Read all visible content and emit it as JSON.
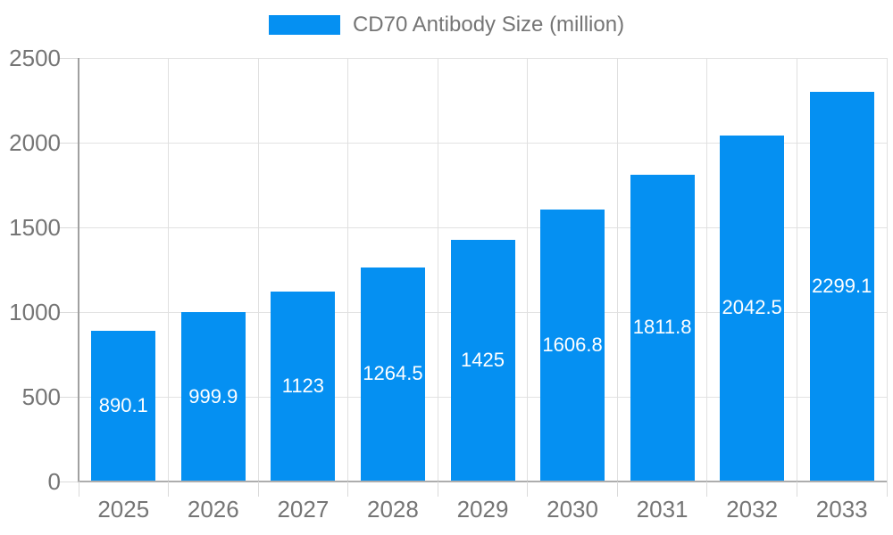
{
  "chart_data": {
    "type": "bar",
    "title": "CD70 Antibody Size (million)",
    "categories": [
      "2025",
      "2026",
      "2027",
      "2028",
      "2029",
      "2030",
      "2031",
      "2032",
      "2033"
    ],
    "values": [
      890.1,
      999.9,
      1123,
      1264.5,
      1425,
      1606.8,
      1811.8,
      2042.5,
      2299.1
    ],
    "value_labels": [
      "890.1",
      "999.9",
      "1123",
      "1264.5",
      "1425",
      "1606.8",
      "1811.8",
      "2042.5",
      "2299.1"
    ],
    "series": [
      {
        "name": "CD70 Antibody Size (million)",
        "values": [
          890.1,
          999.9,
          1123,
          1264.5,
          1425,
          1606.8,
          1811.8,
          2042.5,
          2299.1
        ]
      }
    ],
    "xlabel": "",
    "ylabel": "",
    "ylim": [
      0,
      2500
    ],
    "y_ticks": [
      0,
      500,
      1000,
      1500,
      2000,
      2500
    ],
    "y_tick_labels": [
      "0",
      "500",
      "1000",
      "1500",
      "2000",
      "2500"
    ],
    "grid": true,
    "legend_position": "top",
    "colors": {
      "bar": "#0590f2",
      "bar_value_text": "#ffffff",
      "axis_text": "#757575",
      "gridline": "#e2e2e2",
      "axis_line": "#a0a0a0"
    }
  },
  "legend": {
    "label": "CD70 Antibody Size (million)",
    "swatch_color": "#0590f2"
  }
}
